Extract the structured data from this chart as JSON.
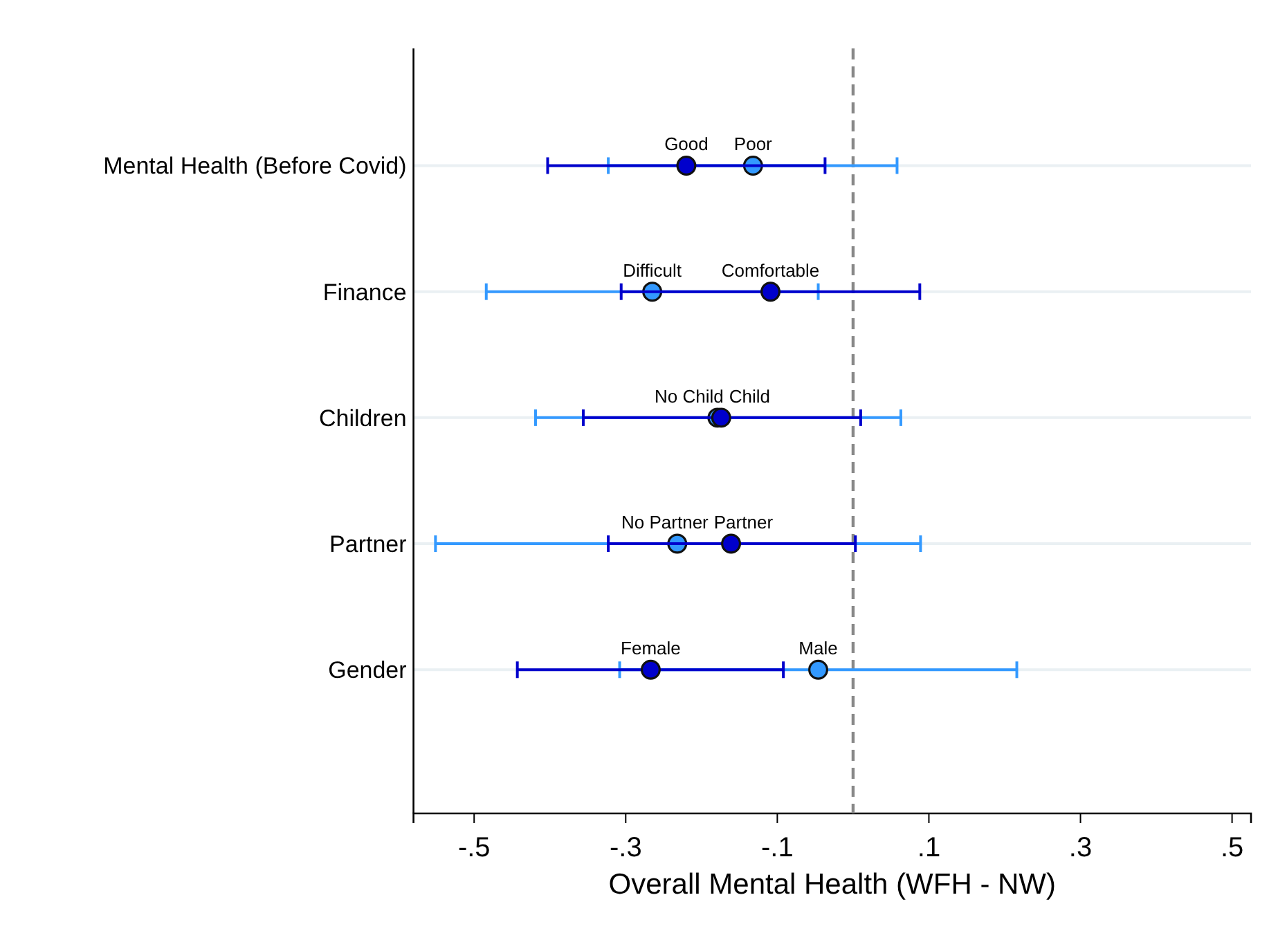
{
  "chart_data": {
    "type": "scatter",
    "orientation": "horizontal",
    "xlabel": "Overall Mental Health (WFH - NW)",
    "categories": [
      "Mental Health (Before Covid)",
      "Finance",
      "Children",
      "Partner",
      "Gender"
    ],
    "xlim": [
      -0.58,
      0.525
    ],
    "xticks": [
      {
        "value": -0.5,
        "label": "-.5"
      },
      {
        "value": -0.3,
        "label": "-.3"
      },
      {
        "value": -0.1,
        "label": "-.1"
      },
      {
        "value": 0.1,
        "label": ".1"
      },
      {
        "value": 0.3,
        "label": ".3"
      },
      {
        "value": 0.5,
        "label": ".5"
      }
    ],
    "grid": "y",
    "marker": "circle",
    "series": [
      {
        "color": "#3399ff",
        "values": [
          -0.132,
          -0.265,
          -0.179,
          -0.232,
          -0.046
        ],
        "errors": [
          [
            -0.323,
            0.058
          ],
          [
            -0.484,
            -0.046
          ],
          [
            -0.419,
            0.063
          ],
          [
            -0.551,
            0.089
          ],
          [
            -0.308,
            0.216
          ]
        ]
      },
      {
        "color": "#0000cc",
        "values": [
          -0.22,
          -0.109,
          -0.174,
          -0.161,
          -0.267
        ],
        "errors": [
          [
            -0.403,
            -0.037
          ],
          [
            -0.306,
            0.088
          ],
          [
            -0.356,
            0.01
          ],
          [
            -0.323,
            0.003
          ],
          [
            -0.443,
            -0.092
          ]
        ]
      }
    ],
    "ref_lines": [
      {
        "axis": "x",
        "value": 0,
        "color": "#888888",
        "line_style": "dashed"
      }
    ],
    "annotations": [
      {
        "text": "Good",
        "x": -0.22,
        "y": "Mental Health (Before Covid)"
      },
      {
        "text": "Poor",
        "x": -0.132,
        "y": "Mental Health (Before Covid)"
      },
      {
        "text": "Difficult",
        "x": -0.265,
        "y": "Finance"
      },
      {
        "text": "Comfortable",
        "x": -0.109,
        "y": "Finance"
      },
      {
        "text": "No Child",
        "x": -0.179,
        "y": "Children"
      },
      {
        "text": "Child",
        "x": -0.174,
        "y": "Children"
      },
      {
        "text": "No Partner",
        "x": -0.232,
        "y": "Partner"
      },
      {
        "text": "Partner",
        "x": -0.161,
        "y": "Partner"
      },
      {
        "text": "Female",
        "x": -0.267,
        "y": "Gender"
      },
      {
        "text": "Male",
        "x": -0.046,
        "y": "Gender"
      }
    ]
  }
}
